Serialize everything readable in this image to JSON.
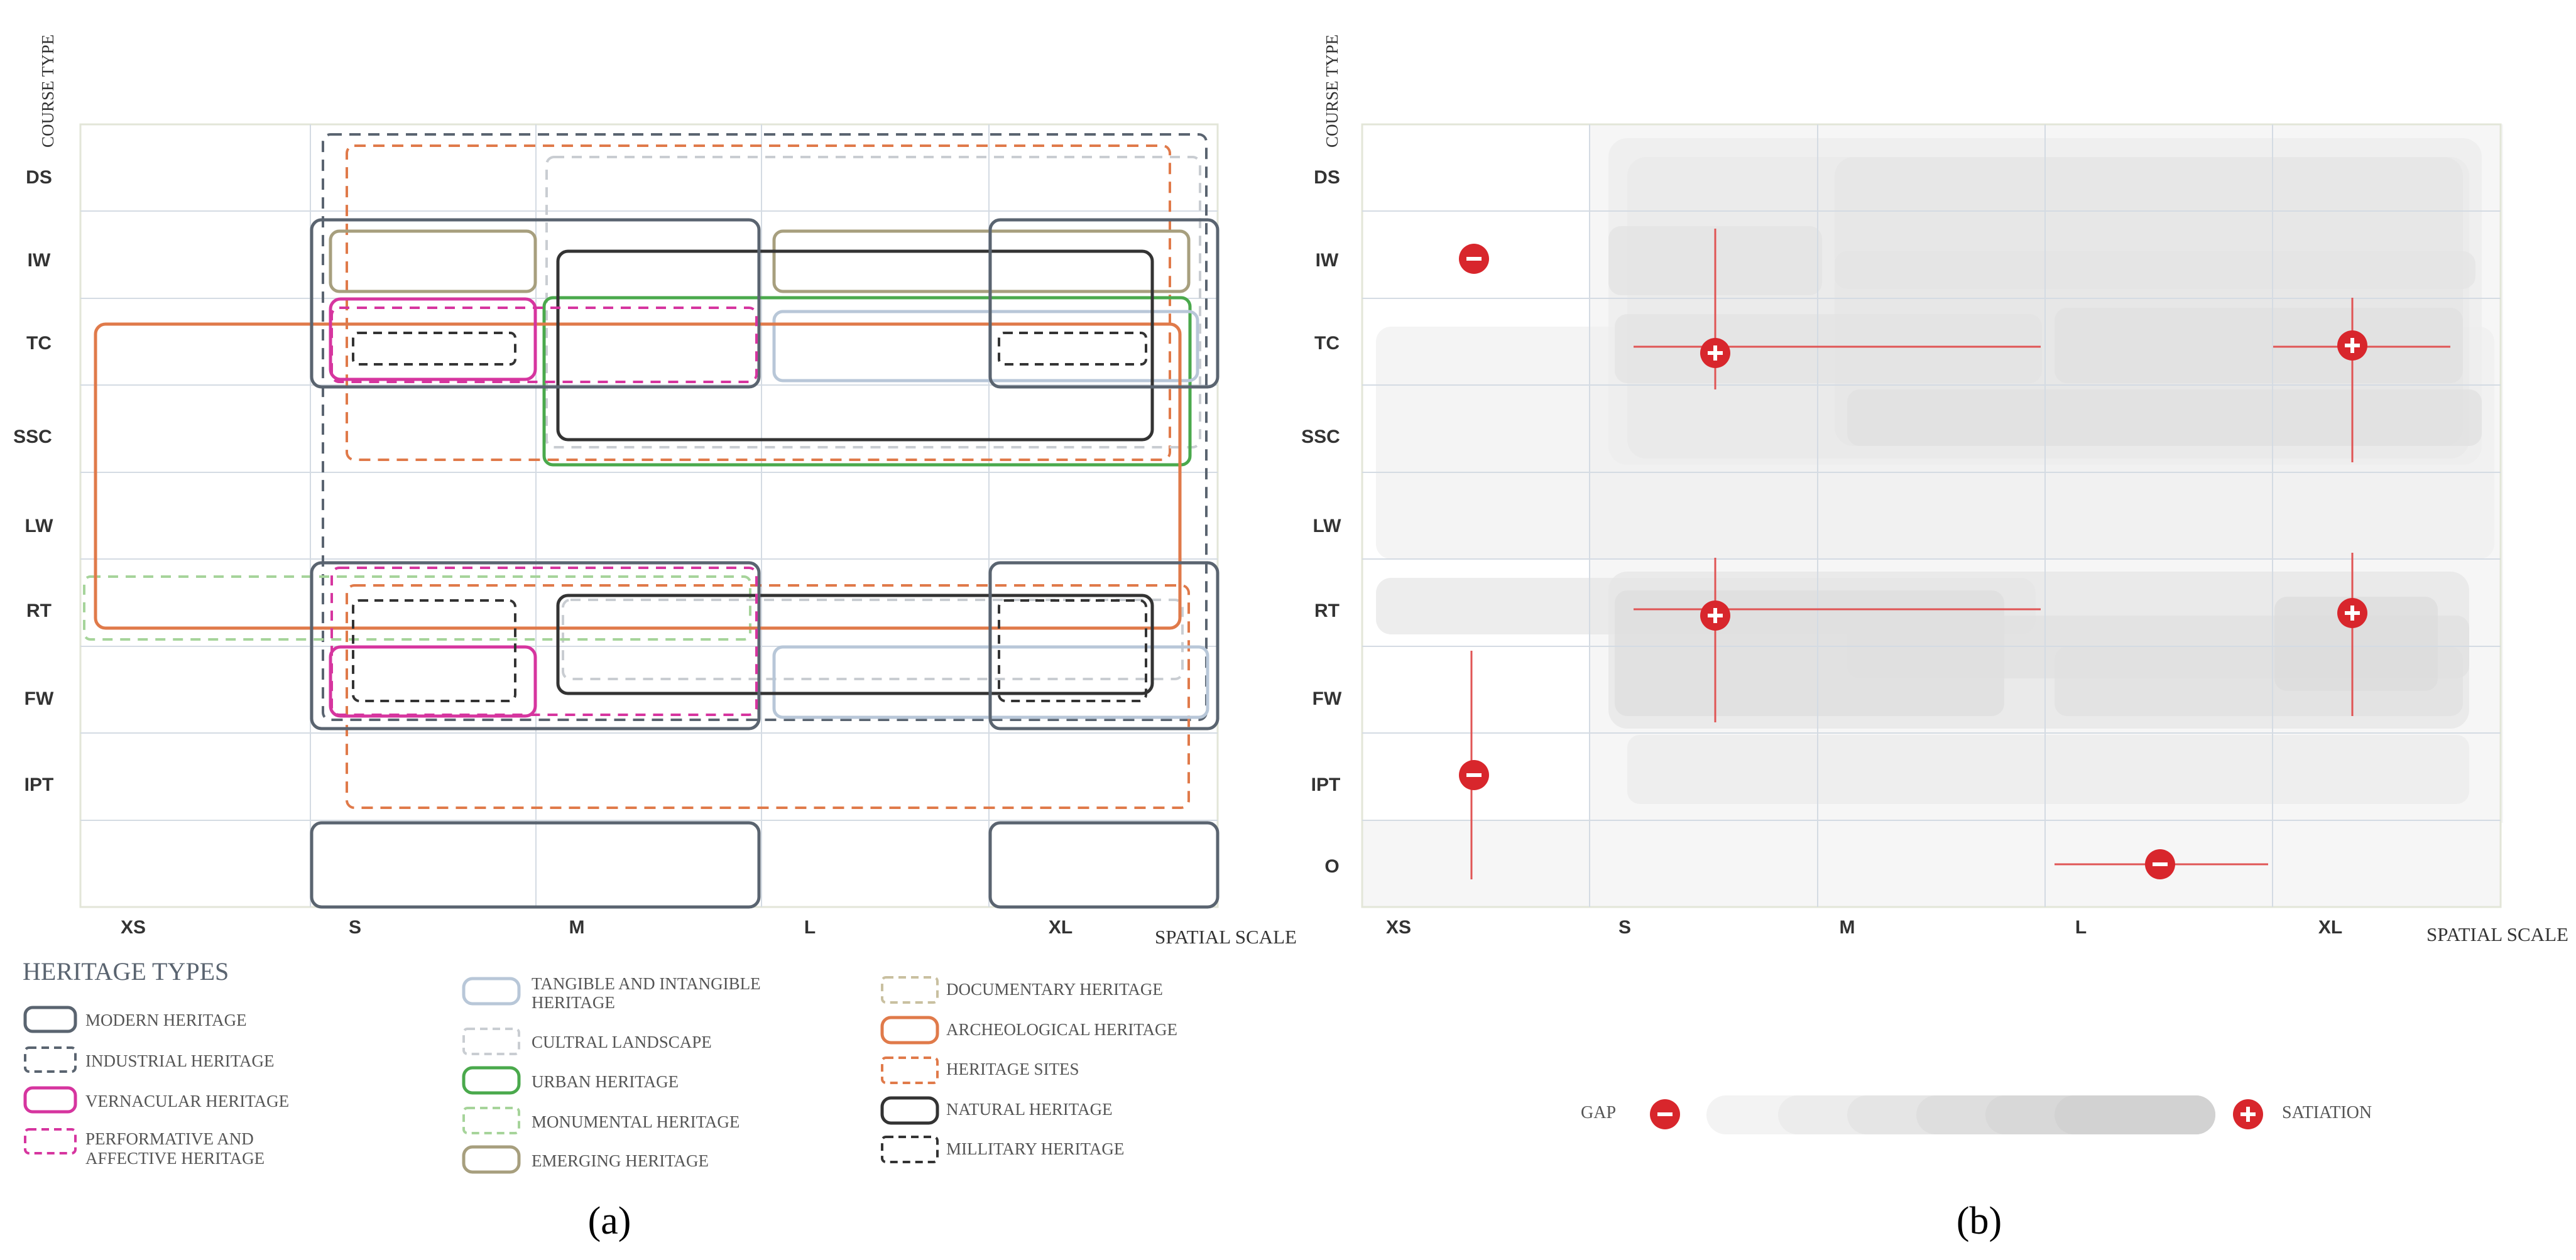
{
  "panel_a": {
    "y_axis_title": "COURSE TYPE",
    "x_axis_title": "SPATIAL SCALE",
    "rows": [
      "DS",
      "IW",
      "TC",
      "SSC",
      "LW",
      "RT",
      "FW",
      "IPT",
      ""
    ],
    "cols": [
      "XS",
      "S",
      "M",
      "L",
      "XL"
    ],
    "caption": "(a)",
    "legend_title": "HERITAGE TYPES",
    "legend_col1": [
      {
        "label": "MODERN HERITAGE",
        "style": "solid",
        "color": "#5a6470"
      },
      {
        "label": "INDUSTRIAL HERITAGE",
        "style": "dashed",
        "color": "#5a6470"
      },
      {
        "label": "VERNACULAR  HERITAGE",
        "style": "solid",
        "color": "#d6359f"
      },
      {
        "label": "PERFORMATIVE AND",
        "label2": "AFFECTIVE HERITAGE",
        "style": "dashed",
        "color": "#d6359f"
      }
    ],
    "legend_col2": [
      {
        "label": "TANGIBLE AND INTANGIBLE",
        "label2": "HERITAGE",
        "style": "solid",
        "color": "#b8c7d8"
      },
      {
        "label": "CULTRAL LANDSCAPE",
        "style": "dashed",
        "color": "#b8bcc0"
      },
      {
        "label": "URBAN HERITAGE",
        "style": "solid",
        "color": "#4aa94c"
      },
      {
        "label": "MONUMENTAL HERITAGE",
        "style": "dashed",
        "color": "#a6d49a"
      },
      {
        "label": "EMERGING HERITAGE",
        "style": "solid",
        "color": "#a79f7e"
      }
    ],
    "legend_col3": [
      {
        "label": "DOCUMENTARY HERITAGE",
        "style": "dashed",
        "color": "#c9c0a0"
      },
      {
        "label": "ARCHEOLOGICAL HERITAGE",
        "style": "solid",
        "color": "#e07a4a"
      },
      {
        "label": "HERITAGE SITES",
        "style": "dashed",
        "color": "#e07a4a"
      },
      {
        "label": "NATURAL HERITAGE",
        "style": "solid",
        "color": "#333333"
      },
      {
        "label": "MILLITARY HERITAGE",
        "style": "dashed",
        "color": "#333333"
      }
    ]
  },
  "panel_b": {
    "y_axis_title": "COURSE TYPE",
    "x_axis_title": "SPATIAL SCALE",
    "rows": [
      "DS",
      "IW",
      "TC",
      "SSC",
      "LW",
      "RT",
      "FW",
      "IPT",
      "O"
    ],
    "cols": [
      "XS",
      "S",
      "M",
      "L",
      "XL"
    ],
    "caption": "(b)",
    "gap_label": "GAP",
    "satiation_label": "SATIATION",
    "markers": [
      {
        "kind": "minus",
        "row": "IW",
        "col": "XS"
      },
      {
        "kind": "plus",
        "row": "TC",
        "col": "S"
      },
      {
        "kind": "plus",
        "row": "TC",
        "col": "XL"
      },
      {
        "kind": "plus",
        "row": "RT",
        "col": "S"
      },
      {
        "kind": "plus",
        "row": "RT",
        "col": "XL"
      },
      {
        "kind": "minus",
        "row": "IPT",
        "col": "XS"
      },
      {
        "kind": "minus",
        "row": "O",
        "col": "L"
      }
    ],
    "accent": "#d8262c"
  }
}
